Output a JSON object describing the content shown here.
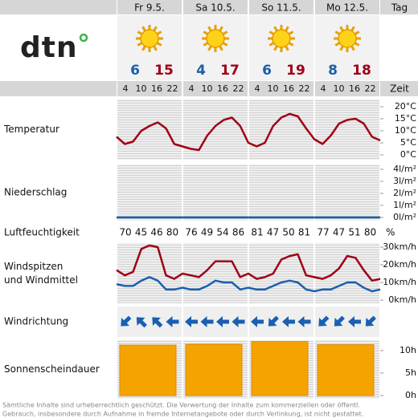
{
  "logo": "dtn",
  "day_header": "Tag",
  "days": [
    {
      "label": "Fr 9.5.",
      "min": 6,
      "max": 15
    },
    {
      "label": "Sa 10.5.",
      "min": 4,
      "max": 17
    },
    {
      "label": "So 11.5.",
      "min": 6,
      "max": 19
    },
    {
      "label": "Mo 12.5.",
      "min": 8,
      "max": 18
    }
  ],
  "hours": [
    4,
    10,
    16,
    22
  ],
  "hours_label": "Zeit",
  "humidity": {
    "label": "Luftfeuchtigkeit",
    "unit": "%",
    "values": [
      70,
      45,
      46,
      80,
      76,
      49,
      54,
      86,
      81,
      47,
      50,
      81,
      77,
      47,
      51,
      80
    ]
  },
  "wind_direction": {
    "label": "Windrichtung",
    "values": [
      45,
      135,
      135,
      90,
      90,
      90,
      90,
      90,
      90,
      45,
      90,
      90,
      45,
      45,
      90,
      45
    ]
  },
  "chart_data": [
    {
      "type": "line",
      "title": "Temperatur",
      "x": [
        0,
        3,
        6,
        9,
        12,
        15,
        18,
        21,
        24,
        27,
        30,
        33,
        36,
        39,
        42,
        45,
        48,
        51,
        54,
        57,
        60,
        63,
        66,
        69,
        72,
        75,
        78,
        81,
        84,
        87,
        90,
        93,
        96
      ],
      "xlim": [
        0,
        96
      ],
      "ylim": [
        -2,
        23
      ],
      "yticks": [
        {
          "value": 20,
          "label": "20°C"
        },
        {
          "value": 15,
          "label": "15°C"
        },
        {
          "value": 10,
          "label": "10°C"
        },
        {
          "value": 5,
          "label": "5°C"
        },
        {
          "value": 0,
          "label": "0°C"
        }
      ],
      "series": [
        {
          "color": "#a00014",
          "values": [
            7.5,
            4.5,
            5.5,
            10,
            12,
            13.5,
            11,
            4.5,
            3.5,
            2.5,
            2,
            8,
            12,
            14.5,
            15.5,
            12,
            5,
            3.5,
            5,
            12,
            15.5,
            17,
            16,
            11,
            6.5,
            4.5,
            8,
            13,
            14.5,
            15,
            13,
            7.5,
            6
          ]
        }
      ]
    },
    {
      "type": "line",
      "title": "Niederschlag",
      "x": [
        0,
        96
      ],
      "xlim": [
        0,
        96
      ],
      "ylim": [
        -0.27,
        4.4
      ],
      "yticks": [
        {
          "value": 4,
          "label": "4l/m²"
        },
        {
          "value": 3,
          "label": "3l/m²"
        },
        {
          "value": 2,
          "label": "2l/m²"
        },
        {
          "value": 1,
          "label": "1l/m²"
        },
        {
          "value": 0,
          "label": "0l/m²"
        }
      ],
      "series": [
        {
          "color": "#1a5fb0",
          "values": [
            0,
            0
          ]
        }
      ]
    },
    {
      "type": "line",
      "title": [
        "Windspitzen",
        "und Windmittel"
      ],
      "x": [
        0,
        3,
        6,
        9,
        12,
        15,
        18,
        21,
        24,
        27,
        30,
        33,
        36,
        39,
        42,
        45,
        48,
        51,
        54,
        57,
        60,
        63,
        66,
        69,
        72,
        75,
        78,
        81,
        84,
        87,
        90,
        93,
        96
      ],
      "xlim": [
        0,
        96
      ],
      "ylim": [
        -1.8,
        32.3
      ],
      "yticks": [
        {
          "value": 30,
          "label": "30km/h"
        },
        {
          "value": 20,
          "label": "20km/h"
        },
        {
          "value": 10,
          "label": "10km/h"
        },
        {
          "value": 0,
          "label": "0km/h"
        }
      ],
      "series": [
        {
          "color": "#a00014",
          "values": [
            17,
            14,
            16,
            29,
            31,
            30,
            14,
            12,
            15,
            14,
            13,
            17,
            22,
            22,
            22,
            13,
            15,
            12,
            13,
            15,
            23,
            25,
            26,
            14,
            13,
            12,
            14,
            18,
            25,
            24,
            17,
            11,
            12
          ]
        },
        {
          "color": "#1a5fb0",
          "values": [
            9,
            8,
            8,
            11,
            13,
            11,
            6,
            6,
            7,
            6,
            6,
            8,
            11,
            10,
            10,
            6,
            7,
            6,
            6,
            8,
            10,
            11,
            10,
            6,
            5,
            6,
            6,
            8,
            10,
            10,
            7,
            5,
            6
          ]
        }
      ]
    },
    {
      "type": "bar",
      "title": "Sonnenscheindauer",
      "ylim": [
        -0.7,
        12.3
      ],
      "yticks": [
        {
          "value": 10,
          "label": "10h"
        },
        {
          "value": 5,
          "label": "5h"
        },
        {
          "value": 0,
          "label": "0h"
        }
      ],
      "color": "#f5a300",
      "values": [
        11.2,
        11.4,
        12,
        11.3
      ]
    }
  ],
  "footer": [
    "Sämtliche Inhalte sind urheberrechtlich geschützt. Die Verwertung der Inhalte zum kommerziellen oder öffentl.",
    "Gebrauch, insbesondere durch Aufnahme in fremde Internetangebote oder durch Verlinkung, ist nicht gestattet."
  ]
}
